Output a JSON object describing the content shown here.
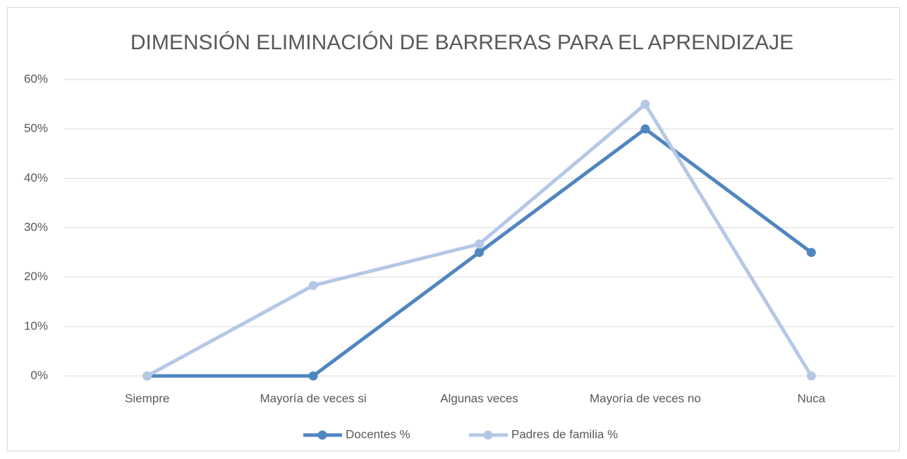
{
  "chart_data": {
    "type": "line",
    "title": "DIMENSIÓN ELIMINACIÓN DE BARRERAS PARA EL APRENDIZAJE",
    "categories": [
      "Siempre",
      "Mayoría de veces si",
      "Algunas veces",
      "Mayoría de veces no",
      "Nuca"
    ],
    "series": [
      {
        "name": "Docentes %",
        "color": "#4f86c0",
        "values": [
          0,
          0,
          25,
          50,
          25
        ]
      },
      {
        "name": "Padres de familia %",
        "color": "#b4c8e6",
        "values": [
          0,
          18.3,
          26.7,
          55,
          0
        ]
      }
    ],
    "ylim": [
      0,
      60
    ],
    "yticks": [
      {
        "value": 0,
        "label": "0%"
      },
      {
        "value": 10,
        "label": "10%"
      },
      {
        "value": 20,
        "label": "20%"
      },
      {
        "value": 30,
        "label": "30%"
      },
      {
        "value": 40,
        "label": "40%"
      },
      {
        "value": 50,
        "label": "50%"
      },
      {
        "value": 60,
        "label": "60%"
      }
    ],
    "grid": true,
    "legend": "bottom"
  }
}
